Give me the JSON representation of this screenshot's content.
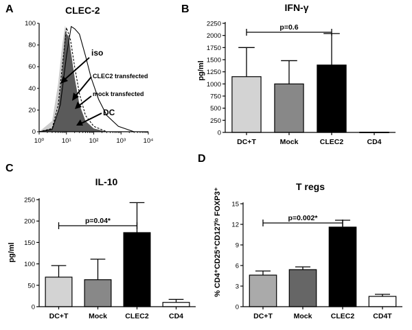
{
  "chart_data": [
    {
      "panel": "A",
      "type": "histogram",
      "title": "CLEC-2",
      "xlabel": "",
      "ylabel": "",
      "xscale": "log",
      "xlim": [
        1,
        10000
      ],
      "ylim": [
        0,
        100
      ],
      "x_tick_labels": [
        "10⁰",
        "10¹",
        "10²",
        "10³",
        "10⁴"
      ],
      "y_tick_labels": [
        "0",
        "20",
        "40",
        "60",
        "80",
        "100"
      ],
      "y_ticks": [
        0,
        20,
        40,
        60,
        80,
        100
      ],
      "series": [
        {
          "name": "iso",
          "style": "light gray fill",
          "x": [
            1,
            3,
            5,
            7,
            9,
            12,
            15,
            20,
            30,
            50,
            80,
            200
          ],
          "y": [
            0,
            10,
            45,
            80,
            98,
            80,
            55,
            30,
            12,
            4,
            1,
            0
          ]
        },
        {
          "name": "DC",
          "style": "dark gray fill",
          "x": [
            1,
            3,
            5,
            7,
            9,
            12,
            15,
            20,
            30,
            50,
            100,
            300
          ],
          "y": [
            0,
            3,
            20,
            55,
            92,
            88,
            72,
            50,
            25,
            10,
            3,
            0
          ]
        },
        {
          "name": "mock transfected",
          "style": "dashed line",
          "x": [
            1,
            3,
            5,
            7,
            10,
            14,
            20,
            30,
            50,
            100,
            300
          ],
          "y": [
            0,
            3,
            25,
            60,
            96,
            85,
            60,
            35,
            15,
            5,
            0
          ]
        },
        {
          "name": "CLEC2 transfected",
          "style": "solid line",
          "x": [
            1,
            3,
            6,
            10,
            15,
            20,
            30,
            50,
            80,
            150,
            300,
            800,
            3000
          ],
          "y": [
            0,
            2,
            25,
            70,
            97,
            95,
            90,
            70,
            50,
            30,
            15,
            5,
            0
          ]
        }
      ],
      "annotations": [
        "iso",
        "CLEC2 transfected",
        "mock transfected",
        "DC"
      ]
    },
    {
      "panel": "B",
      "type": "bar",
      "title": "IFN-γ",
      "xlabel": "",
      "ylabel": "pg/ml",
      "ylim": [
        0,
        2250
      ],
      "y_ticks": [
        0,
        250,
        500,
        750,
        1000,
        1250,
        1500,
        1750,
        2000,
        2250
      ],
      "y_tick_labels": [
        "0",
        "250",
        "500",
        "750",
        "1000",
        "1250",
        "1500",
        "1750",
        "2000",
        "2250"
      ],
      "categories": [
        "DC+T",
        "Mock",
        "CLEC2",
        "CD4"
      ],
      "values": [
        1150,
        1000,
        1390,
        5
      ],
      "errors": [
        600,
        480,
        650,
        0
      ],
      "colors": [
        "#d3d3d3",
        "#888888",
        "#000000",
        "#ffffff"
      ],
      "significance": {
        "from": "DC+T",
        "to": "CLEC2",
        "label": "p=0.6"
      }
    },
    {
      "panel": "C",
      "type": "bar",
      "title": "IL-10",
      "xlabel": "",
      "ylabel": "pg/ml",
      "ylim": [
        0,
        250
      ],
      "y_ticks": [
        0,
        50,
        100,
        150,
        200,
        250
      ],
      "y_tick_labels": [
        "0",
        "50",
        "100",
        "150",
        "200",
        "250"
      ],
      "categories": [
        "DC+T",
        "Mock",
        "CLEC2",
        "CD4"
      ],
      "values": [
        69,
        63,
        173,
        10
      ],
      "errors": [
        27,
        48,
        70,
        7
      ],
      "colors": [
        "#d3d3d3",
        "#888888",
        "#000000",
        "#ffffff"
      ],
      "significance": {
        "from": "DC+T",
        "to": "CLEC2",
        "label": "p=0.04*"
      }
    },
    {
      "panel": "D",
      "type": "bar",
      "title": "T regs",
      "xlabel": "",
      "ylabel": "% CD4⁺CD25⁺CD127ˡᵒ FOXP3⁺",
      "ylim": [
        0,
        15
      ],
      "y_ticks": [
        0,
        3,
        6,
        9,
        12,
        15
      ],
      "y_tick_labels": [
        "0",
        "3",
        "6",
        "9",
        "12",
        "15"
      ],
      "categories": [
        "DC+T",
        "Mock",
        "CLEC2",
        "CD4T"
      ],
      "values": [
        4.6,
        5.4,
        11.6,
        1.5
      ],
      "errors": [
        0.6,
        0.4,
        1.0,
        0.3
      ],
      "colors": [
        "#aaaaaa",
        "#666666",
        "#000000",
        "#ffffff"
      ],
      "significance": {
        "from": "DC+T",
        "to": "CLEC2",
        "label": "p=0.002*"
      }
    }
  ]
}
